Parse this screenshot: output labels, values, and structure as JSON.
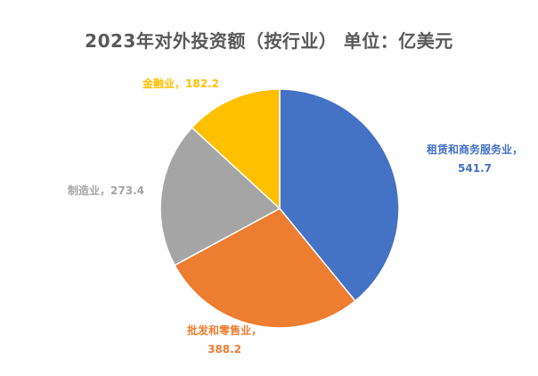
{
  "chart_data": {
    "type": "pie",
    "title": "2023年对外投资额（按行业） 单位：亿美元",
    "start_angle_deg": 0,
    "direction": "clockwise",
    "slices": [
      {
        "label": "租赁和商务服务业",
        "value": 541.7,
        "value_text": "541.7",
        "color": "#4472C4",
        "label_color": "#4472C4"
      },
      {
        "label": "批发和零售业",
        "value": 388.2,
        "value_text": "388.2",
        "color": "#ED7D31",
        "label_color": "#ED7D31"
      },
      {
        "label": "制造业",
        "value": 273.4,
        "value_text": "273.4",
        "color": "#A5A5A5",
        "label_color": "#A5A5A5"
      },
      {
        "label": "金融业",
        "value": 182.2,
        "value_text": "182.2",
        "color": "#FFC000",
        "label_color": "#FFC000"
      }
    ],
    "legend": "none",
    "data_labels": "outside"
  }
}
